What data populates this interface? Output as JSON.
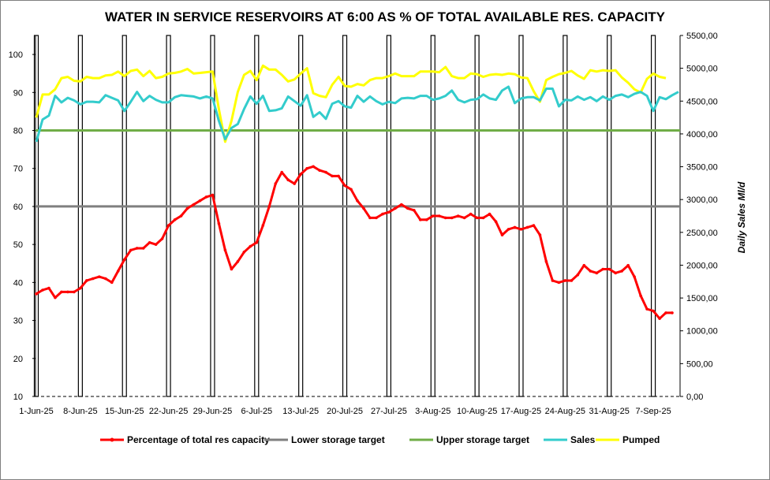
{
  "chart_data": {
    "type": "line",
    "title": "WATER IN SERVICE RESERVOIRS AT 6:00   AS % OF TOTAL AVAILABLE RES. CAPACITY",
    "ylabel_left": "",
    "ylabel_right": "Daily Sales Ml/d",
    "ylim_left": [
      10,
      105
    ],
    "ylim_right": [
      0,
      5500
    ],
    "yticks_left": [
      "10",
      "20",
      "30",
      "40",
      "50",
      "60",
      "70",
      "80",
      "90",
      "100"
    ],
    "yticks_right": [
      "0,00",
      "500,00",
      "1000,00",
      "1500,00",
      "2000,00",
      "2500,00",
      "3000,00",
      "3500,00",
      "4000,00",
      "4500,00",
      "5000,00",
      "5500,00"
    ],
    "x_tick_labels": [
      "1-Jun-25",
      "8-Jun-25",
      "15-Jun-25",
      "22-Jun-25",
      "29-Jun-25",
      "6-Jul-25",
      "13-Jul-25",
      "20-Jul-25",
      "27-Jul-25",
      "3-Aug-25",
      "10-Aug-25",
      "17-Aug-25",
      "24-Aug-25",
      "31-Aug-25",
      "7-Sep-25"
    ],
    "grid": false,
    "legend_position": "bottom",
    "colors": {
      "pct": "#ff0000",
      "lower": "#7f7f7f",
      "upper": "#70ad47",
      "sales": "#33cccc",
      "pumped": "#ffff00",
      "bars": "#000000"
    },
    "series": [
      {
        "name": "Percentage of total res capacity",
        "axis": "left",
        "values": [
          37,
          38,
          38.5,
          36,
          37.5,
          37.5,
          37.5,
          38.5,
          40.5,
          41,
          41.5,
          41,
          40,
          43,
          46,
          48.5,
          49,
          49,
          50.5,
          50,
          51.5,
          55,
          56.5,
          57.5,
          59.5,
          60.5,
          61.5,
          62.5,
          63,
          55.5,
          48.5,
          43.5,
          45.5,
          48,
          49.5,
          50.5,
          55,
          60,
          66,
          69,
          67,
          66,
          68.5,
          70,
          70.5,
          69.5,
          69,
          68,
          68,
          65.5,
          64.5,
          61.5,
          59.5,
          57,
          57,
          58,
          58.5,
          59.5,
          60.5,
          59.5,
          59,
          56.5,
          56.5,
          57.5,
          57.5,
          57,
          57,
          57.5,
          57,
          58,
          57,
          57,
          58,
          56,
          52.5,
          54,
          54.5,
          54,
          54.5,
          55,
          52.5,
          45.5,
          40.5,
          40,
          40.5,
          40.5,
          42,
          44.5,
          43,
          42.5,
          43.5,
          43.5,
          42.5,
          43,
          44.5,
          41.5,
          36.5,
          33,
          32.5,
          30.5,
          32,
          32
        ]
      },
      {
        "name": "Lower storage target",
        "axis": "left",
        "values": [
          60,
          60
        ]
      },
      {
        "name": "Upper storage target",
        "axis": "left",
        "values": [
          80,
          80
        ]
      },
      {
        "name": "Sales",
        "axis": "right",
        "values": [
          3880,
          4220,
          4280,
          4580,
          4480,
          4550,
          4510,
          4450,
          4490,
          4490,
          4480,
          4590,
          4550,
          4510,
          4350,
          4490,
          4640,
          4500,
          4580,
          4520,
          4480,
          4480,
          4560,
          4590,
          4580,
          4570,
          4540,
          4570,
          4540,
          4200,
          3920,
          4090,
          4150,
          4380,
          4570,
          4460,
          4580,
          4350,
          4360,
          4390,
          4570,
          4500,
          4430,
          4590,
          4260,
          4330,
          4230,
          4460,
          4500,
          4420,
          4400,
          4580,
          4490,
          4570,
          4500,
          4450,
          4490,
          4470,
          4540,
          4550,
          4540,
          4580,
          4580,
          4520,
          4540,
          4580,
          4660,
          4520,
          4480,
          4520,
          4530,
          4600,
          4540,
          4520,
          4660,
          4720,
          4470,
          4540,
          4560,
          4560,
          4510,
          4690,
          4690,
          4420,
          4520,
          4510,
          4570,
          4520,
          4560,
          4500,
          4570,
          4520,
          4580,
          4600,
          4560,
          4610,
          4640,
          4580,
          4350,
          4560,
          4530,
          4590,
          4640
        ]
      },
      {
        "name": "Pumped",
        "axis": "right",
        "values": [
          4250,
          4600,
          4600,
          4680,
          4850,
          4870,
          4810,
          4800,
          4870,
          4850,
          4850,
          4890,
          4900,
          4950,
          4880,
          4960,
          4980,
          4880,
          4960,
          4850,
          4870,
          4920,
          4930,
          4950,
          4990,
          4920,
          4930,
          4940,
          4950,
          4380,
          3880,
          4200,
          4640,
          4900,
          4960,
          4820,
          5040,
          4980,
          4980,
          4900,
          4800,
          4830,
          4920,
          5000,
          4620,
          4580,
          4560,
          4750,
          4870,
          4730,
          4720,
          4760,
          4740,
          4820,
          4850,
          4850,
          4880,
          4920,
          4880,
          4880,
          4880,
          4950,
          4950,
          4950,
          4940,
          5020,
          4880,
          4850,
          4850,
          4920,
          4910,
          4870,
          4900,
          4910,
          4900,
          4920,
          4910,
          4860,
          4850,
          4650,
          4490,
          4820,
          4870,
          4910,
          4930,
          4960,
          4890,
          4840,
          4970,
          4950,
          4970,
          4960,
          4970,
          4860,
          4780,
          4680,
          4630,
          4840,
          4920,
          4870,
          4850
        ]
      }
    ]
  }
}
